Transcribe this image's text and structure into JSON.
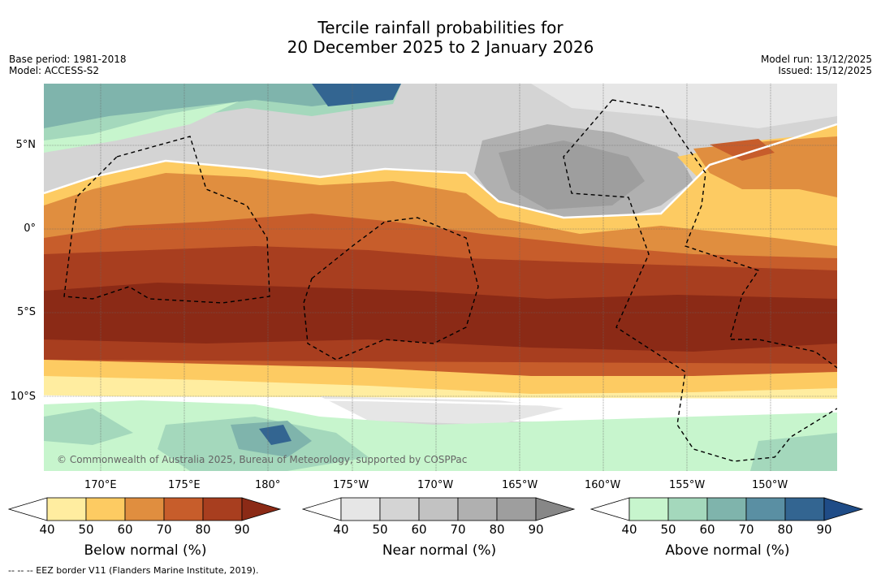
{
  "header": {
    "title_line1": "Tercile rainfall probabilities for",
    "title_line2": "20 December 2025 to 2 January 2026",
    "base_period": "Base period: 1981-2018",
    "model": "Model: ACCESS-S2",
    "model_run": "Model run: 13/12/2025",
    "issued": "Issued: 15/12/2025"
  },
  "map": {
    "lat_labels": [
      "5°N",
      "0°",
      "5°S",
      "10°S"
    ],
    "lon_labels": [
      "170°E",
      "175°E",
      "180°",
      "175°W",
      "170°W",
      "165°W",
      "160°W",
      "155°W",
      "150°W"
    ],
    "copyright": "© Commonwealth of Australia 2025, Bureau of Meteorology, supported by COSPPac"
  },
  "colorbars": [
    {
      "title": "Below normal (%)",
      "ticks": [
        "40",
        "50",
        "60",
        "70",
        "80",
        "90"
      ],
      "colors": [
        "#ffeda0",
        "#fdcb62",
        "#e08e3f",
        "#c75d2b",
        "#a83e1f",
        "#8b2a16"
      ]
    },
    {
      "title": "Near normal (%)",
      "ticks": [
        "40",
        "50",
        "60",
        "70",
        "80",
        "90"
      ],
      "colors": [
        "#e6e6e6",
        "#d4d4d4",
        "#c2c2c2",
        "#b0b0b0",
        "#9e9e9e",
        "#878787"
      ]
    },
    {
      "title": "Above normal (%)",
      "ticks": [
        "40",
        "50",
        "60",
        "70",
        "80",
        "90"
      ],
      "colors": [
        "#c7f5cd",
        "#a4d8bc",
        "#7fb4ac",
        "#5a8fa3",
        "#336591",
        "#1f4c87"
      ]
    }
  ],
  "footer": {
    "legend_line": "--  --  -- EEZ border V11 (Flanders Marine Institute, 2019)."
  }
}
